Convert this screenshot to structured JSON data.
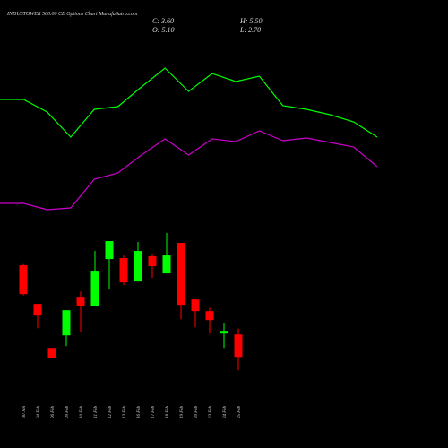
{
  "chart_data": [
    {
      "type": "candlestick",
      "title": "INDUSTOWER 560.00 CE Options Chart MunafaSutra.com",
      "info": [
        "C: 3.60",
        "H: 5.50",
        "O: 5.10",
        "L: 2.70"
      ],
      "categories": [
        "30 Jan",
        "04 Feb",
        "06 Feb",
        "09 Feb",
        "10 Feb",
        "11 Feb",
        "12 Feb",
        "13 Feb",
        "16 Feb",
        "17 Feb",
        "18 Feb",
        "19 Feb",
        "20 Feb",
        "23 Feb",
        "24 Feb",
        "25 Feb"
      ],
      "open": [
        9.72,
        7.14,
        4.2,
        5.04,
        7.56,
        7.02,
        10.14,
        10.2,
        8.64,
        10.32,
        9.18,
        11.22,
        7.44,
        6.66,
        5.16,
        5.1
      ],
      "high": [
        9.8,
        7.14,
        4.2,
        6.72,
        7.98,
        10.68,
        11.34,
        10.38,
        11.28,
        10.5,
        11.88,
        11.22,
        7.44,
        6.9,
        5.88,
        5.5
      ],
      "low": [
        7.7,
        5.52,
        3.5,
        4.32,
        5.28,
        7.02,
        8.1,
        8.4,
        8.64,
        8.88,
        9.18,
        6.12,
        5.58,
        5.16,
        4.2,
        2.7
      ],
      "close": [
        7.8,
        6.36,
        3.54,
        6.72,
        7.02,
        9.3,
        11.34,
        8.58,
        10.68,
        9.66,
        10.38,
        7.08,
        6.66,
        6.06,
        5.34,
        3.6
      ],
      "up_color": "#00ff00",
      "down_color": "#ff0000",
      "ylim": [
        2,
        12
      ]
    },
    {
      "type": "line",
      "series": [
        {
          "color": "#00ff00",
          "values": [
            69.5,
            69.5,
            62.5,
            48.5,
            64,
            65.5,
            76.5,
            87,
            74,
            84,
            79.5,
            82.5,
            66,
            64,
            61,
            57,
            48.5
          ]
        },
        {
          "color": "#cc00cc",
          "values": [
            11.5,
            11.5,
            8,
            9,
            25,
            28.5,
            38.5,
            47.5,
            38.5,
            47.5,
            46,
            52,
            46.5,
            48,
            45.5,
            43,
            32
          ]
        }
      ],
      "ylim": [
        0,
        100
      ]
    }
  ]
}
